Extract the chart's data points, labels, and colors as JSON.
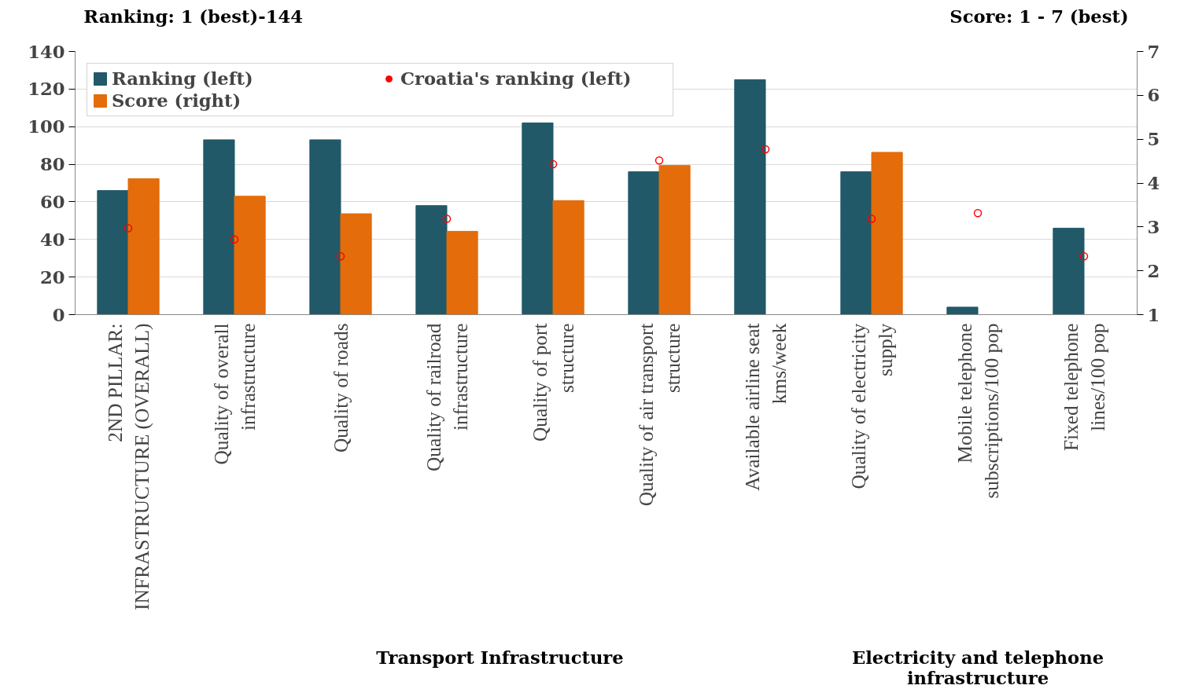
{
  "chart_data": {
    "type": "bar",
    "ylabel": "Ranking: 1 (best)-144",
    "y2label": "Score: 1 - 7 (best)",
    "categories": [
      "2ND PILLAR: INFRASTRUCTURE (OVERALL)",
      "Quality of overall infrastructure",
      "Quality of roads",
      "Quality of railroad infrastructure",
      "Quality of port structure",
      "Quality of air transport structure",
      "Available airline seat kms/week",
      "Quality of electricity supply",
      "Mobile telephone subscriptions/100 pop",
      "Fixed telephone lines/100 pop"
    ],
    "series": [
      {
        "name": "Ranking (left)",
        "color": "#215968",
        "values": [
          66,
          93,
          93,
          58,
          102,
          76,
          125,
          76,
          4,
          46
        ]
      },
      {
        "name": "Score (right)",
        "color": "#e46c0a",
        "axis": "y2",
        "values": [
          4.1,
          3.7,
          3.3,
          2.9,
          3.6,
          4.4,
          null,
          4.7,
          null,
          null
        ]
      },
      {
        "name": "Croatia's ranking (left)",
        "color": "#ff0000",
        "type": "scatter",
        "marker": "circle",
        "values": [
          46,
          40,
          31,
          51,
          80,
          82,
          88,
          51,
          54,
          31
        ]
      }
    ],
    "ylim": [
      0,
      140
    ],
    "yticks": [
      0,
      20,
      40,
      60,
      80,
      100,
      120,
      140
    ],
    "y2lim": [
      1,
      7
    ],
    "y2ticks": [
      1,
      2,
      3,
      4,
      5,
      6,
      7
    ],
    "grid": "y",
    "legend": "top left",
    "annotations": [
      "Transport Infrastructure",
      "Electricity and telephone infrastructure"
    ]
  }
}
